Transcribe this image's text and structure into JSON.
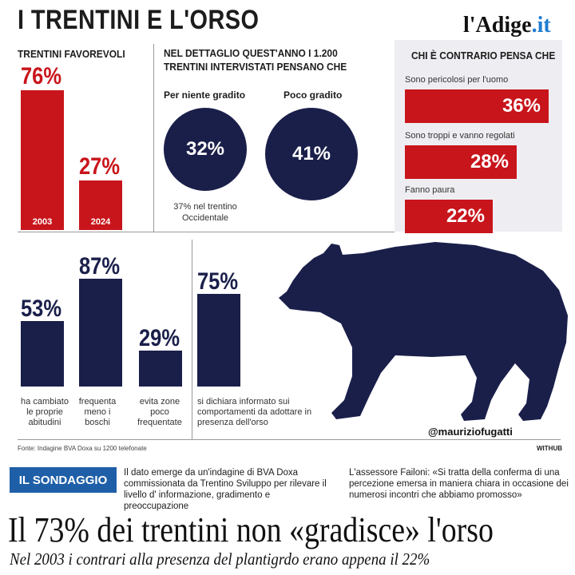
{
  "header": {
    "title": "I TRENTINI E L'ORSO",
    "logo_main": "l'Adige",
    "logo_suffix": ".it"
  },
  "colors": {
    "red": "#c8151b",
    "navy": "#1a1f4a",
    "blue": "#1f5fa8",
    "panel": "#eeeef2"
  },
  "chart_data": [
    {
      "type": "bar",
      "title": "TRENTINI FAVOREVOLI",
      "categories": [
        "2003",
        "2024"
      ],
      "values": [
        76,
        27
      ],
      "value_labels": [
        "76%",
        "27%"
      ],
      "ylim": [
        0,
        100
      ]
    },
    {
      "type": "pie",
      "title": "NEL DETTAGLIO QUEST'ANNO I 1.200 TRENTINI INTERVISTATI PENSANO CHE",
      "categories": [
        "Per niente gradito",
        "Poco gradito"
      ],
      "values": [
        32,
        41
      ],
      "value_labels": [
        "32%",
        "41%"
      ],
      "note": "37% nel trentino Occidentale"
    },
    {
      "type": "bar",
      "orientation": "horizontal",
      "title": "CHI È CONTRARIO PENSA CHE",
      "categories": [
        "Sono pericolosi per l'uomo",
        "Sono troppi e vanno regolati",
        "Fanno paura"
      ],
      "values": [
        36,
        28,
        22
      ],
      "value_labels": [
        "36%",
        "28%",
        "22%"
      ],
      "xlim": [
        0,
        40
      ]
    },
    {
      "type": "bar",
      "categories": [
        "ha cambiato le proprie abitudini",
        "frequenta meno i boschi",
        "evita zone poco frequentate",
        "si dichiara informato sui comportamenti da adottare in presenza dell'orso"
      ],
      "values": [
        53,
        87,
        29,
        75
      ],
      "value_labels": [
        "53%",
        "87%",
        "29%",
        "75%"
      ],
      "ylim": [
        0,
        100
      ]
    }
  ],
  "footer": {
    "source": "Fonte: Indagine BVA Doxa su 1200 telefonate",
    "credit": "WITHUB",
    "handle": "@mauriziofugatti"
  },
  "article": {
    "badge": "IL SONDAGGIO",
    "info_left": "Il dato emerge da un'indagine di BVA Doxa commissionata da Trentino Sviluppo per rilevare il livello d' informazione, gradimento e preoccupazione",
    "info_right": "L'assessore Failoni: «Si tratta della conferma di una percezione emersa in maniera chiara in occasione dei numerosi incontri che abbiamo promosso»",
    "headline": "Il 73% dei trentini non «gradisce» l'orso",
    "subline": "Nel 2003 i contrari alla presenza del plantigrdo erano appena il 22%"
  }
}
